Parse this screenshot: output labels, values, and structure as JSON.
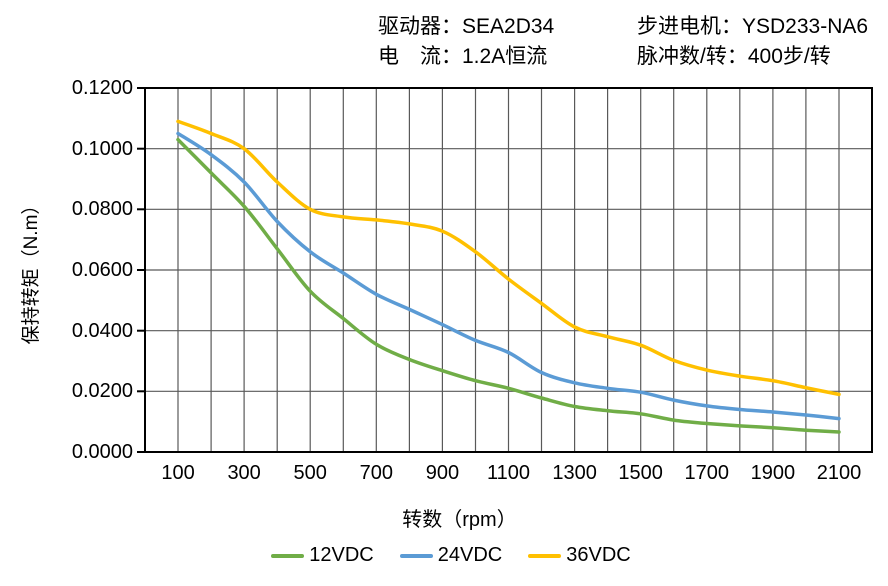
{
  "header": {
    "rows": [
      {
        "left": "驱动器：SEA2D34",
        "right": "步进电机：YSD233-NA6"
      },
      {
        "left": "电　流：1.2A恒流",
        "right": "脉冲数/转：400步/转"
      }
    ]
  },
  "chart_data": {
    "type": "line",
    "title": "",
    "xlabel": "转数（rpm）",
    "ylabel": "保持转矩（N.m）",
    "xlim": [
      0,
      2200
    ],
    "ylim": [
      0,
      0.12
    ],
    "grid": true,
    "legend_position": "bottom",
    "axis_color": "#000000",
    "grid_color": "#595959",
    "x": [
      100,
      200,
      300,
      400,
      500,
      600,
      700,
      800,
      900,
      1000,
      1100,
      1200,
      1300,
      1400,
      1500,
      1600,
      1700,
      1800,
      1900,
      2000,
      2100
    ],
    "x_ticks": [
      {
        "value": 100,
        "label": "100"
      },
      {
        "value": 300,
        "label": "300"
      },
      {
        "value": 500,
        "label": "500"
      },
      {
        "value": 700,
        "label": "700"
      },
      {
        "value": 900,
        "label": "900"
      },
      {
        "value": 1100,
        "label": "1100"
      },
      {
        "value": 1300,
        "label": "1300"
      },
      {
        "value": 1500,
        "label": "1500"
      },
      {
        "value": 1700,
        "label": "1700"
      },
      {
        "value": 1900,
        "label": "1900"
      },
      {
        "value": 2100,
        "label": "2100"
      }
    ],
    "y_ticks": [
      {
        "value": 0.0,
        "label": "0.0000"
      },
      {
        "value": 0.02,
        "label": "0.0200"
      },
      {
        "value": 0.04,
        "label": "0.0400"
      },
      {
        "value": 0.06,
        "label": "0.0600"
      },
      {
        "value": 0.08,
        "label": "0.0800"
      },
      {
        "value": 0.1,
        "label": "0.1000"
      },
      {
        "value": 0.12,
        "label": "0.1200"
      }
    ],
    "series": [
      {
        "name": "12VDC",
        "color": "#70AD47",
        "values": [
          0.103,
          0.092,
          0.081,
          0.067,
          0.053,
          0.044,
          0.0355,
          0.0305,
          0.0268,
          0.0235,
          0.021,
          0.0178,
          0.015,
          0.0136,
          0.0126,
          0.0105,
          0.0094,
          0.0086,
          0.008,
          0.0072,
          0.0066
        ]
      },
      {
        "name": "24VDC",
        "color": "#5B9BD5",
        "values": [
          0.105,
          0.098,
          0.089,
          0.076,
          0.066,
          0.059,
          0.052,
          0.047,
          0.042,
          0.0368,
          0.0328,
          0.0262,
          0.0228,
          0.021,
          0.0197,
          0.0171,
          0.0152,
          0.014,
          0.0132,
          0.0122,
          0.011
        ]
      },
      {
        "name": "36VDC",
        "color": "#FFC000",
        "values": [
          0.109,
          0.105,
          0.1,
          0.089,
          0.08,
          0.0775,
          0.0765,
          0.0752,
          0.0728,
          0.066,
          0.057,
          0.049,
          0.0412,
          0.038,
          0.0352,
          0.0302,
          0.027,
          0.025,
          0.0235,
          0.0212,
          0.019
        ]
      }
    ]
  }
}
